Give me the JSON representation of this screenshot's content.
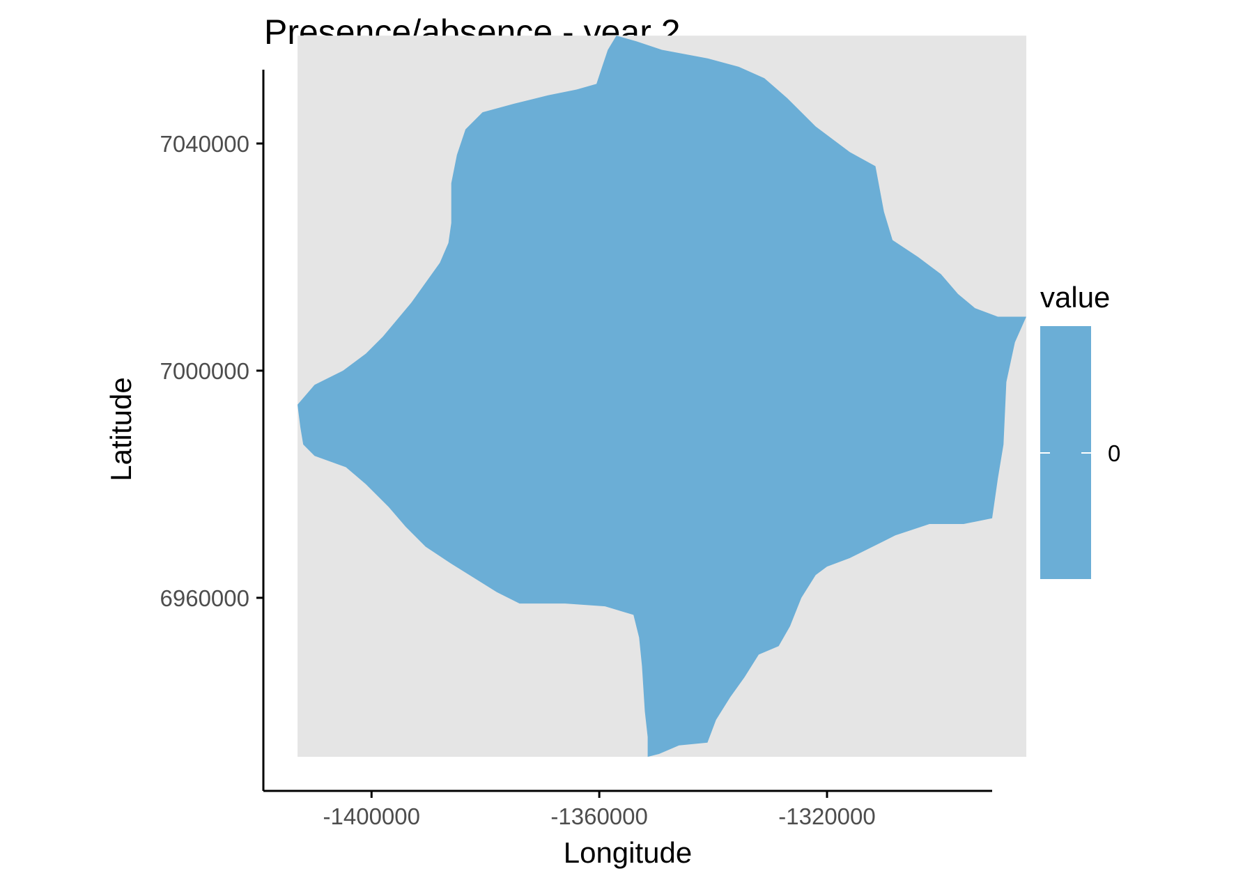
{
  "chart_data": {
    "type": "heatmap",
    "title": "Presence/absence - year 2",
    "xlabel": "Longitude",
    "ylabel": "Latitude",
    "xlim": [
      -1419000,
      -1291000
    ],
    "ylim": [
      6926000,
      7053000
    ],
    "x_ticks": [
      {
        "value": -1400000,
        "label": "-1400000"
      },
      {
        "value": -1360000,
        "label": "-1360000"
      },
      {
        "value": -1320000,
        "label": "-1320000"
      }
    ],
    "y_ticks": [
      {
        "value": 7040000,
        "label": "7040000"
      },
      {
        "value": 7000000,
        "label": "7000000"
      },
      {
        "value": 6960000,
        "label": "6960000"
      }
    ],
    "raster_extent": {
      "x": [
        -1413000,
        -1285000
      ],
      "y": [
        6932000,
        7059000
      ]
    },
    "background_color": "#e5e5e5",
    "fill_color": "#6baed6",
    "presence_region": [
      [
        -1357000,
        7059000
      ],
      [
        -1353500,
        7058000
      ],
      [
        -1349000,
        7056500
      ],
      [
        -1341000,
        7055000
      ],
      [
        -1335500,
        7053500
      ],
      [
        -1331000,
        7051500
      ],
      [
        -1327000,
        7048000
      ],
      [
        -1322000,
        7043000
      ],
      [
        -1316000,
        7038500
      ],
      [
        -1311500,
        7036000
      ],
      [
        -1310000,
        7028000
      ],
      [
        -1308500,
        7023000
      ],
      [
        -1304000,
        7020000
      ],
      [
        -1300000,
        7017000
      ],
      [
        -1297000,
        7013500
      ],
      [
        -1294000,
        7011000
      ],
      [
        -1290000,
        7009500
      ],
      [
        -1285000,
        7009500
      ],
      [
        -1287000,
        7005000
      ],
      [
        -1288500,
        6998000
      ],
      [
        -1289000,
        6987000
      ],
      [
        -1290000,
        6981000
      ],
      [
        -1291000,
        6974000
      ],
      [
        -1296000,
        6973000
      ],
      [
        -1302000,
        6973000
      ],
      [
        -1308000,
        6971000
      ],
      [
        -1312000,
        6969000
      ],
      [
        -1316000,
        6967000
      ],
      [
        -1320000,
        6965500
      ],
      [
        -1322000,
        6964000
      ],
      [
        -1324500,
        6960000
      ],
      [
        -1326500,
        6955000
      ],
      [
        -1328500,
        6951500
      ],
      [
        -1332000,
        6950000
      ],
      [
        -1334500,
        6946000
      ],
      [
        -1337000,
        6942500
      ],
      [
        -1339500,
        6938500
      ],
      [
        -1341000,
        6934500
      ],
      [
        -1346000,
        6934000
      ],
      [
        -1349500,
        6932500
      ],
      [
        -1351500,
        6932000
      ],
      [
        -1351500,
        6935500
      ],
      [
        -1352000,
        6940000
      ],
      [
        -1352500,
        6948000
      ],
      [
        -1353000,
        6953000
      ],
      [
        -1354000,
        6957000
      ],
      [
        -1359000,
        6958500
      ],
      [
        -1366000,
        6959000
      ],
      [
        -1374000,
        6959000
      ],
      [
        -1378000,
        6961000
      ],
      [
        -1382000,
        6963500
      ],
      [
        -1386000,
        6966000
      ],
      [
        -1390500,
        6969000
      ],
      [
        -1394000,
        6972500
      ],
      [
        -1397000,
        6976000
      ],
      [
        -1401000,
        6980000
      ],
      [
        -1404500,
        6983000
      ],
      [
        -1410000,
        6985000
      ],
      [
        -1412000,
        6987000
      ],
      [
        -1412500,
        6990000
      ],
      [
        -1413000,
        6994000
      ],
      [
        -1410000,
        6997500
      ],
      [
        -1405000,
        7000000
      ],
      [
        -1401000,
        7003000
      ],
      [
        -1398000,
        7006000
      ],
      [
        -1395500,
        7009000
      ],
      [
        -1393000,
        7012000
      ],
      [
        -1390500,
        7015500
      ],
      [
        -1388000,
        7019000
      ],
      [
        -1386500,
        7022500
      ],
      [
        -1386000,
        7026000
      ],
      [
        -1386000,
        7033000
      ],
      [
        -1385000,
        7038000
      ],
      [
        -1383500,
        7042500
      ],
      [
        -1380500,
        7045500
      ],
      [
        -1375000,
        7047000
      ],
      [
        -1369000,
        7048500
      ],
      [
        -1364000,
        7049500
      ],
      [
        -1360500,
        7050500
      ],
      [
        -1359500,
        7053500
      ],
      [
        -1358500,
        7056500
      ],
      [
        -1357000,
        7059000
      ]
    ],
    "legend": {
      "title": "value",
      "labels": [
        "0"
      ],
      "color": "#6baed6",
      "position": "right"
    },
    "grid": false
  }
}
